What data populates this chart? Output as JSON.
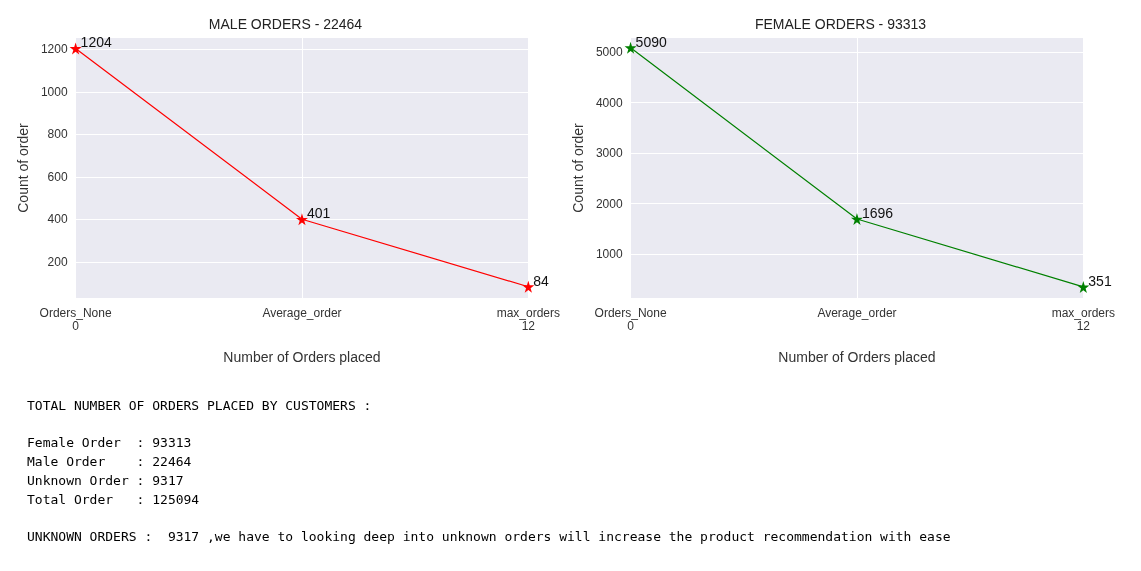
{
  "chart_data": [
    {
      "type": "line",
      "title": "MALE ORDERS - 22464",
      "xlabel": "Number of Orders placed",
      "ylabel": "Count of order",
      "categories": [
        "Orders_None\n0",
        "Average_order",
        "max_orders\n12"
      ],
      "series": [
        {
          "color": "#ff0000",
          "values": [
            1204,
            401,
            84
          ]
        }
      ],
      "ylim": [
        31,
        1253
      ],
      "yticks": [
        200,
        400,
        600,
        800,
        1000,
        1200
      ],
      "grid": true,
      "marker": "star",
      "data_labels": true
    },
    {
      "type": "line",
      "title": "FEMALE ORDERS - 93313",
      "xlabel": "Number of Orders placed",
      "ylabel": "Count of order",
      "categories": [
        "Orders_None\n0",
        "Average_order",
        "max_orders\n12"
      ],
      "series": [
        {
          "color": "#008000",
          "values": [
            5090,
            1696,
            351
          ]
        }
      ],
      "ylim": [
        131,
        5283
      ],
      "yticks": [
        1000,
        2000,
        3000,
        4000,
        5000
      ],
      "grid": true,
      "marker": "star",
      "data_labels": true
    },
    {
      "type": "other",
      "annotations": [
        "TOTAL NUMBER OF ORDERS PLACED BY CUSTOMERS :"
      ]
    },
    {
      "type": "other",
      "annotations": [
        "Female Order  : 93313",
        "Male Order    : 22464",
        "Unknown Order : 9317",
        "Total Order   : 125094"
      ]
    },
    {
      "type": "other",
      "annotations": [
        "UNKNOWN ORDERS :  9317 ,we have to looking deep into unknown orders will increase the product recommendation with ease"
      ]
    }
  ]
}
